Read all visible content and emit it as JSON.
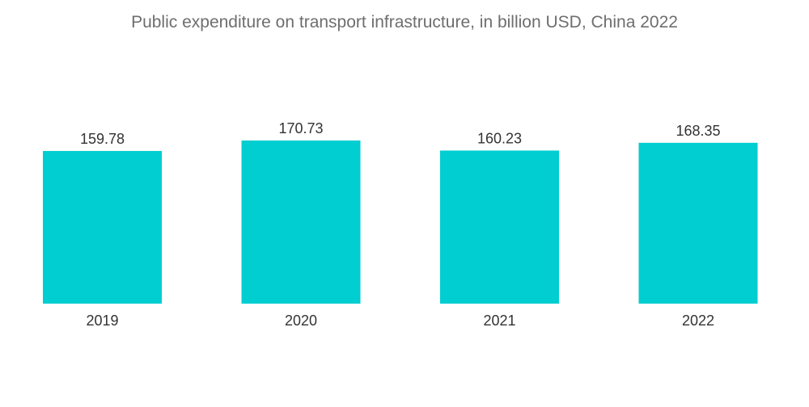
{
  "chart_data": {
    "type": "bar",
    "title": "Public expenditure on transport infrastructure, in billion USD, China 2022",
    "categories": [
      "2019",
      "2020",
      "2021",
      "2022"
    ],
    "values": [
      159.78,
      170.73,
      160.23,
      168.35
    ],
    "value_labels": [
      "159.78",
      "170.73",
      "160.23",
      "168.35"
    ],
    "xlabel": "",
    "ylabel": "",
    "ylim": [
      0,
      170.73
    ],
    "grid": false,
    "legend": "none",
    "colors": {
      "bar": "#00CED1",
      "label": "#333333",
      "title": "#6e6e6e"
    }
  }
}
